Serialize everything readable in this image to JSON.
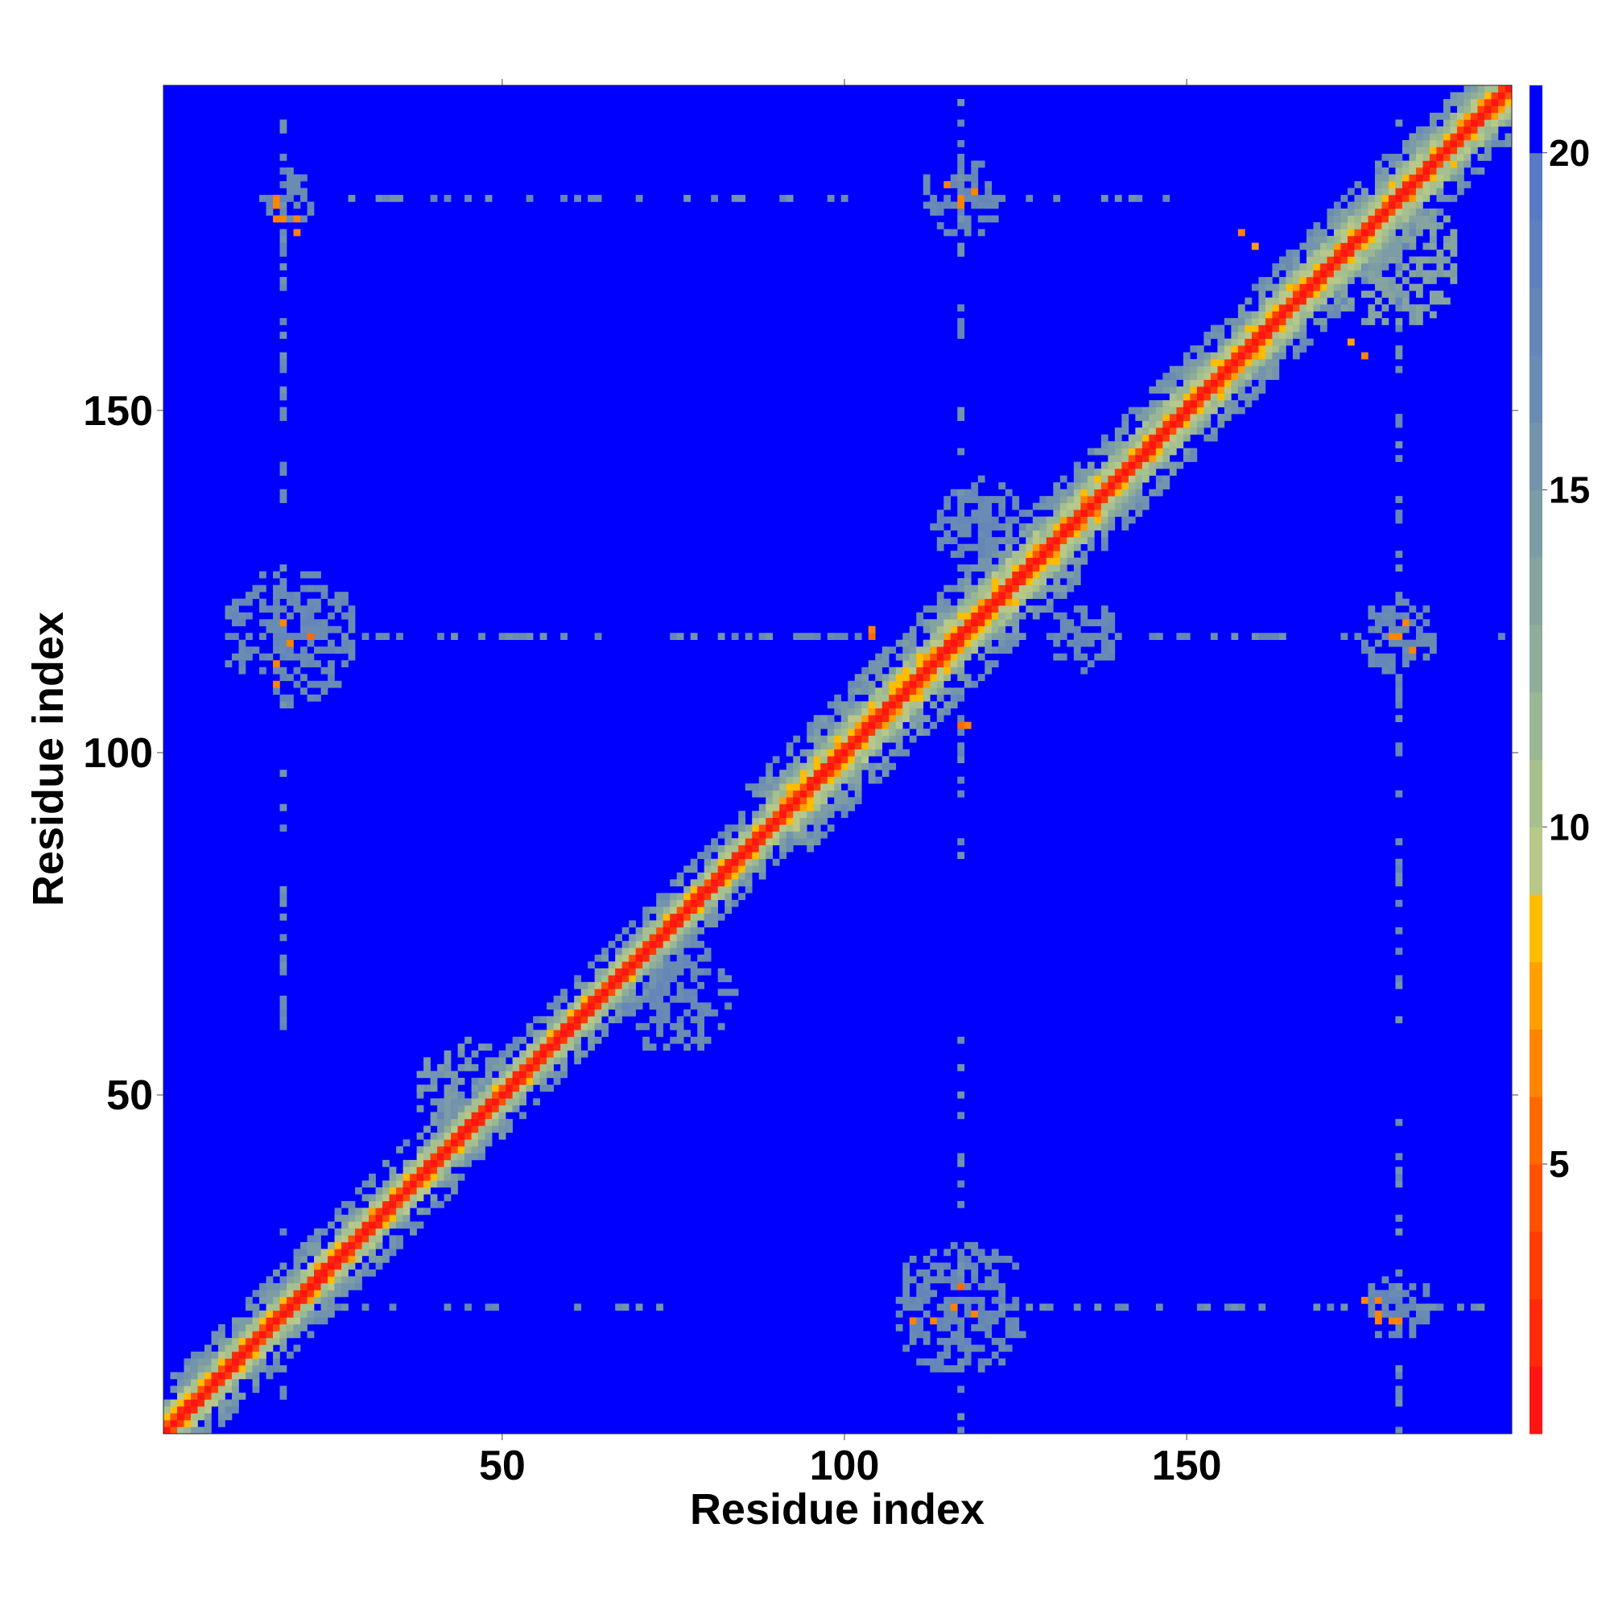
{
  "chart_data": {
    "type": "heatmap",
    "title": "",
    "xlabel": "Residue index",
    "ylabel": "Residue index",
    "xlim": [
      1,
      197
    ],
    "ylim": [
      1,
      197
    ],
    "xticks": [
      50,
      100,
      150
    ],
    "yticks": [
      50,
      100,
      150
    ],
    "colorbar": {
      "range": [
        1,
        21
      ],
      "ticks": [
        5,
        10,
        15,
        20
      ],
      "levels": [
        {
          "from": 1,
          "to": 2,
          "color": "#ff1414"
        },
        {
          "from": 2,
          "to": 3,
          "color": "#ff2a0a"
        },
        {
          "from": 3,
          "to": 4,
          "color": "#ff3d00"
        },
        {
          "from": 4,
          "to": 5,
          "color": "#ff5200"
        },
        {
          "from": 5,
          "to": 6,
          "color": "#ff6a00"
        },
        {
          "from": 6,
          "to": 7,
          "color": "#ff8400"
        },
        {
          "from": 7,
          "to": 8,
          "color": "#ffa000"
        },
        {
          "from": 8,
          "to": 9,
          "color": "#ffbc00"
        },
        {
          "from": 9,
          "to": 10,
          "color": "#b8c888"
        },
        {
          "from": 10,
          "to": 11,
          "color": "#a6c08e"
        },
        {
          "from": 11,
          "to": 12,
          "color": "#9ab794"
        },
        {
          "from": 12,
          "to": 13,
          "color": "#8fae9a"
        },
        {
          "from": 13,
          "to": 14,
          "color": "#85a4a0"
        },
        {
          "from": 14,
          "to": 15,
          "color": "#7c9ca6"
        },
        {
          "from": 15,
          "to": 16,
          "color": "#7394ac"
        },
        {
          "from": 16,
          "to": 17,
          "color": "#6a8cb2"
        },
        {
          "from": 17,
          "to": 18,
          "color": "#6486b8"
        },
        {
          "from": 18,
          "to": 19,
          "color": "#5f80be"
        },
        {
          "from": 19,
          "to": 20,
          "color": "#5a7ac4"
        },
        {
          "from": 20,
          "to": 21,
          "color": "#0000ff"
        }
      ]
    },
    "description_values": {
      "n_residues": 197,
      "diagonal_value": 1.5,
      "background_value": 21
    },
    "features": {
      "diagonal_band": [
        {
          "from": 1,
          "to": 40,
          "width": 3.5
        },
        {
          "from": 40,
          "to": 90,
          "width": 3
        },
        {
          "from": 90,
          "to": 130,
          "width": 4.5
        },
        {
          "from": 130,
          "to": 197,
          "width": 4
        }
      ],
      "cross_lines": [
        {
          "orientation": "v",
          "at": 18,
          "ranges": [
            [
              5,
              30
            ],
            [
              60,
              100
            ],
            [
              105,
              197
            ]
          ]
        },
        {
          "orientation": "v",
          "at": 117,
          "ranges": [
            [
              1,
              60
            ],
            [
              80,
              110
            ],
            [
              120,
              197
            ]
          ]
        },
        {
          "orientation": "v",
          "at": 181,
          "ranges": [
            [
              1,
              50
            ],
            [
              60,
              110
            ],
            [
              120,
              197
            ]
          ]
        },
        {
          "orientation": "h",
          "at": 19,
          "ranges": [
            [
              25,
              75
            ],
            [
              120,
              197
            ]
          ]
        },
        {
          "orientation": "h",
          "at": 117,
          "ranges": [
            [
              25,
              105
            ],
            [
              140,
              197
            ]
          ]
        },
        {
          "orientation": "h",
          "at": 181,
          "ranges": [
            [
              20,
              100
            ],
            [
              125,
              150
            ]
          ]
        }
      ],
      "clusters": [
        {
          "x": 19,
          "y": 117,
          "r": 10,
          "value": 16
        },
        {
          "x": 117,
          "y": 19,
          "r": 10,
          "value": 16
        },
        {
          "x": 117,
          "y": 181,
          "r": 6,
          "value": 16
        },
        {
          "x": 181,
          "y": 117,
          "r": 6,
          "value": 16
        },
        {
          "x": 181,
          "y": 19,
          "r": 5,
          "value": 16
        },
        {
          "x": 19,
          "y": 181,
          "r": 4,
          "value": 16
        },
        {
          "x": 75,
          "y": 65,
          "r": 9,
          "value": 16
        },
        {
          "x": 120,
          "y": 133,
          "r": 7,
          "value": 16
        },
        {
          "x": 135,
          "y": 117,
          "r": 5,
          "value": 16
        },
        {
          "x": 45,
          "y": 50,
          "r": 8,
          "value": 14
        },
        {
          "x": 180,
          "y": 172,
          "r": 10,
          "value": 13
        }
      ],
      "contacts": [
        {
          "x": 17,
          "y": 180,
          "value": 6
        },
        {
          "x": 18,
          "y": 178,
          "value": 6
        },
        {
          "x": 20,
          "y": 178,
          "value": 6
        },
        {
          "x": 117,
          "y": 180,
          "value": 6
        },
        {
          "x": 119,
          "y": 182,
          "value": 6
        },
        {
          "x": 19,
          "y": 116,
          "value": 6
        },
        {
          "x": 17,
          "y": 110,
          "value": 6
        },
        {
          "x": 181,
          "y": 117,
          "value": 6
        },
        {
          "x": 183,
          "y": 115,
          "value": 6
        },
        {
          "x": 113,
          "y": 17,
          "value": 6
        },
        {
          "x": 117,
          "y": 22,
          "value": 5
        },
        {
          "x": 119,
          "y": 18,
          "value": 6
        },
        {
          "x": 176,
          "y": 20,
          "value": 6
        },
        {
          "x": 178,
          "y": 17,
          "value": 6
        },
        {
          "x": 181,
          "y": 17,
          "value": 6
        },
        {
          "x": 104,
          "y": 117,
          "value": 5
        },
        {
          "x": 118,
          "y": 104,
          "value": 6
        },
        {
          "x": 176,
          "y": 158,
          "value": 6
        },
        {
          "x": 160,
          "y": 174,
          "value": 7
        },
        {
          "x": 135,
          "y": 137,
          "value": 6
        },
        {
          "x": 92,
          "y": 94,
          "value": 7
        }
      ]
    }
  }
}
